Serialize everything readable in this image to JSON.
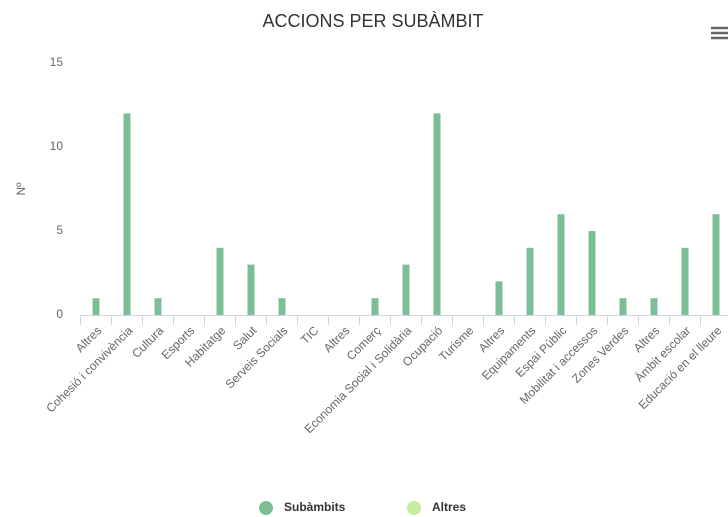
{
  "chart_data": {
    "type": "bar",
    "title": "ACCIONS PER SUBÀMBIT",
    "y_label": "Nº",
    "categories": [
      "Altres",
      "Cohesió i convivència",
      "Cultura",
      "Esports",
      "Habitatge",
      "Salut",
      "Serveis Socials",
      "TIC",
      "Altres",
      "Comerç",
      "Economia Social i Solidària",
      "Ocupació",
      "Turisme",
      "Altres",
      "Equipaments",
      "Espai Públic",
      "Mobilitat i accessos",
      "Zones Verdes",
      "Altres",
      "Àmbit escolar",
      "Educació en el lleure"
    ],
    "series": [
      {
        "name": "Subàmbits",
        "color": "#7cbf96",
        "values": [
          1,
          12,
          1,
          0,
          4,
          3,
          1,
          0,
          0,
          1,
          3,
          12,
          0,
          2,
          4,
          6,
          5,
          1,
          1,
          4,
          6
        ]
      },
      {
        "name": "Altres",
        "color": "#c8eba2",
        "values": [
          null,
          null,
          null,
          null,
          null,
          null,
          null,
          null,
          null,
          null,
          null,
          null,
          null,
          null,
          null,
          null,
          null,
          null,
          null,
          null,
          null
        ]
      }
    ],
    "ylim": [
      0,
      15
    ],
    "yticks": [
      0,
      5,
      10,
      15
    ],
    "grid": false
  }
}
